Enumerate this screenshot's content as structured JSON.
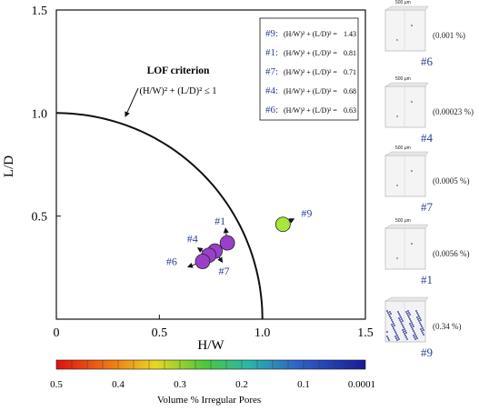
{
  "chart_data": {
    "type": "scatter",
    "xlabel": "H/W",
    "ylabel": "L/D",
    "xlim": [
      0,
      1.5
    ],
    "ylim": [
      0,
      1.5
    ],
    "x_ticks": [
      "0",
      "0.5",
      "1.0",
      "1.5"
    ],
    "y_ticks": [
      "0.5",
      "1.0",
      "1.5"
    ],
    "curve_label": "LOF criterion",
    "formula": "(H/W)² + (L/D)² ≤ 1",
    "points": [
      {
        "label": "#9",
        "x": 1.1,
        "y": 0.46,
        "color": "#a8e63c"
      },
      {
        "label": "#1",
        "x": 0.83,
        "y": 0.37,
        "color": "#9a40c8"
      },
      {
        "label": "#7",
        "x": 0.77,
        "y": 0.33,
        "color": "#9a40c8"
      },
      {
        "label": "#4",
        "x": 0.74,
        "y": 0.31,
        "color": "#9a40c8"
      },
      {
        "label": "#6",
        "x": 0.71,
        "y": 0.28,
        "color": "#9a40c8"
      }
    ],
    "legend_box": [
      {
        "label": "#9:",
        "value": "1.43"
      },
      {
        "label": "#1:",
        "value": "0.81"
      },
      {
        "label": "#7:",
        "value": "0.71"
      },
      {
        "label": "#4:",
        "value": "0.68"
      },
      {
        "label": "#6:",
        "value": "0.63"
      }
    ],
    "colorbar": {
      "label": "Volume % Irregular Pores",
      "ticks": [
        "0.5",
        "0.4",
        "0.3",
        "0.2",
        "0.1",
        "0.0001"
      ]
    }
  },
  "thumbnails": [
    {
      "label": "#6",
      "pct": "(0.001 %)",
      "scale": "500 μm"
    },
    {
      "label": "#4",
      "pct": "(0.00023 %)",
      "scale": "500 μm"
    },
    {
      "label": "#7",
      "pct": "(0.0005 %)",
      "scale": "500 μm"
    },
    {
      "label": "#1",
      "pct": "(0.0056 %)",
      "scale": "500 μm"
    },
    {
      "label": "#9",
      "pct": "(0.34 %)",
      "scale": ""
    }
  ]
}
